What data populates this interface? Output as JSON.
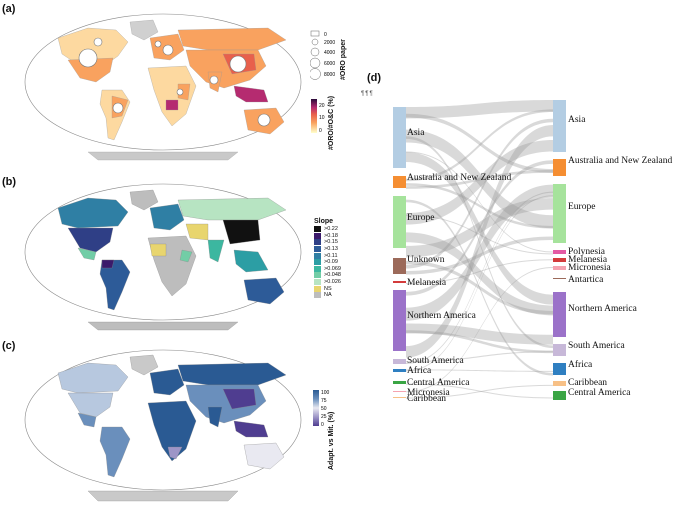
{
  "panels": {
    "a": "(a)",
    "b": "(b)",
    "c": "(c)",
    "d": "(d)"
  },
  "legend_a": {
    "size_title": "#ORO paper",
    "size_values": [
      "0",
      "2000",
      "4000",
      "6000",
      "8000"
    ],
    "color_title": "#ORO/#O&C (%)",
    "color_ticks": [
      "20",
      "10",
      "0"
    ],
    "colors": [
      "#ffffcc",
      "#fdd9a0",
      "#f9a25f",
      "#e8604c",
      "#b52b70",
      "#5c0a6d",
      "#2a0a3a"
    ]
  },
  "legend_b": {
    "title": "Slope",
    "items": [
      {
        "label": ">0.22",
        "color": "#111111"
      },
      {
        "label": ">0.18",
        "color": "#3b1a6b"
      },
      {
        "label": ">0.15",
        "color": "#2f3f86"
      },
      {
        "label": ">0.13",
        "color": "#2d5b98"
      },
      {
        "label": ">0.11",
        "color": "#2f7fa4"
      },
      {
        "label": ">0.09",
        "color": "#2c9ea4"
      },
      {
        "label": ">0.069",
        "color": "#3cb7a0"
      },
      {
        "label": ">0.048",
        "color": "#72cda6"
      },
      {
        "label": ">0.026",
        "color": "#b7e4c2"
      },
      {
        "label": "NS",
        "color": "#e8d56e"
      },
      {
        "label": "NA",
        "color": "#bdbdbd"
      }
    ]
  },
  "legend_c": {
    "title": "Adapt. vs Mit. (%)",
    "ticks": [
      "100",
      "75",
      "50",
      "25",
      "0"
    ],
    "colors": [
      "#2a5a93",
      "#6a8fbc",
      "#b7c8df",
      "#e9e9f1",
      "#9d95c7",
      "#4f3d90"
    ]
  },
  "stray_marks": "¶¶¶",
  "sankey": {
    "left_nodes": [
      {
        "label": "Asia",
        "color": "#b3cde3"
      },
      {
        "label": "Australia and New Zealand",
        "color": "#f58e32"
      },
      {
        "label": "Europe",
        "color": "#a6e39c"
      },
      {
        "label": "Unknown",
        "color": "#9c6a5a"
      },
      {
        "label": "Melanesia",
        "color": "#d33b3b"
      },
      {
        "label": "Northern America",
        "color": "#9b72c9"
      },
      {
        "label": "South America",
        "color": "#c7b8d8"
      },
      {
        "label": "Africa",
        "color": "#2f7fc1"
      },
      {
        "label": "Central America",
        "color": "#3aa544"
      },
      {
        "label": "Micronesia",
        "color": "#f5a3b0"
      },
      {
        "label": "Caribbean",
        "color": "#f7c086"
      }
    ],
    "right_nodes": [
      {
        "label": "Asia",
        "color": "#b3cde3"
      },
      {
        "label": "Australia and New Zealand",
        "color": "#f58e32"
      },
      {
        "label": "Europe",
        "color": "#a6e39c"
      },
      {
        "label": "Polynesia",
        "color": "#e35aa3"
      },
      {
        "label": "Melanesia",
        "color": "#d33b3b"
      },
      {
        "label": "Micronesia",
        "color": "#f5a3b0"
      },
      {
        "label": "Antartica",
        "color": "#9c6a5a"
      },
      {
        "label": "Northern America",
        "color": "#9b72c9"
      },
      {
        "label": "South America",
        "color": "#c7b8d8"
      },
      {
        "label": "Africa",
        "color": "#2f7fc1"
      },
      {
        "label": "Caribbean",
        "color": "#f7c086"
      },
      {
        "label": "Central America",
        "color": "#3aa544"
      }
    ]
  }
}
